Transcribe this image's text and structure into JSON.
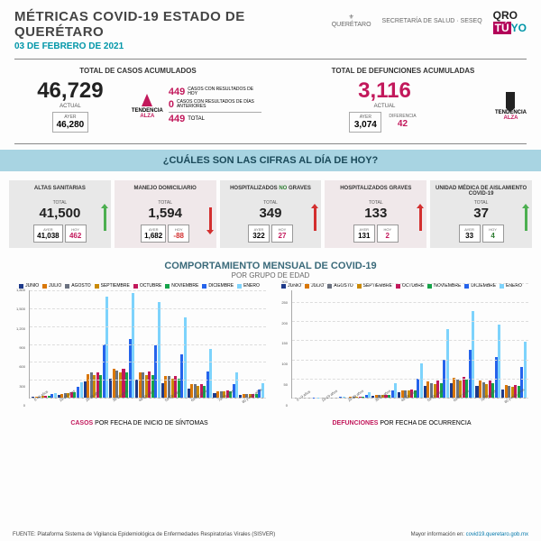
{
  "header": {
    "title": "MÉTRICAS COVID-19 ESTADO DE QUERÉTARO",
    "date": "03 DE FEBRERO DE 2021",
    "logo_sec": "SECRETARÍA DE SALUD · SESEQ",
    "logo_state": "QUERÉTARO"
  },
  "totals": {
    "cases": {
      "title": "TOTAL DE CASOS ACUMULADOS",
      "current": "46,729",
      "current_label": "ACTUAL",
      "yesterday": "46,280",
      "yesterday_label": "AYER",
      "today_results": "449",
      "today_results_label": "CASOS CON RESULTADOS DE HOY",
      "prev_results": "0",
      "prev_results_label": "CASOS CON RESULTADOS DE DÍAS ANTERIORES",
      "total_new": "449",
      "total_new_label": "TOTAL",
      "trend_label": "TENDENCIA",
      "trend_value": "ALZA"
    },
    "deaths": {
      "title": "TOTAL DE DEFUNCIONES ACUMULADAS",
      "current": "3,116",
      "current_label": "ACTUAL",
      "yesterday": "3,074",
      "yesterday_label": "AYER",
      "diff": "42",
      "diff_label": "DIFERENCIA",
      "trend_label": "TENDENCIA",
      "trend_value": "ALZA"
    }
  },
  "band": "¿CUÁLES SON LAS CIFRAS AL DÍA DE HOY?",
  "cards": [
    {
      "title": "ALTAS SANITARIAS",
      "total": "41,500",
      "yesterday": "41,038",
      "today": "462",
      "today_color": "#c2185b",
      "arrow": "green-up"
    },
    {
      "title": "MANEJO DOMICILIARIO",
      "total": "1,594",
      "yesterday": "1,682",
      "today": "-88",
      "today_color": "#d32f2f",
      "arrow": "red-down"
    },
    {
      "title_html": "HOSPITALIZADOS <span class='no-green'>NO</span> GRAVES",
      "title": "HOSPITALIZADOS NO GRAVES",
      "total": "349",
      "yesterday": "322",
      "today": "27",
      "today_color": "#c2185b",
      "arrow": "red-up"
    },
    {
      "title": "HOSPITALIZADOS GRAVES",
      "total": "133",
      "yesterday": "131",
      "today": "2",
      "today_color": "#c2185b",
      "arrow": "red-up"
    },
    {
      "title": "UNIDAD MÉDICA DE AISLAMIENTO COVID-19",
      "total": "37",
      "yesterday": "33",
      "today": "4",
      "today_color": "#2e7d32",
      "arrow": "green-up"
    }
  ],
  "card_labels": {
    "total": "TOTAL",
    "yesterday": "AYER",
    "today": "HOY"
  },
  "charts_header": {
    "title": "COMPORTAMIENTO MENSUAL DE COVID-19",
    "subtitle": "POR GRUPO DE EDAD"
  },
  "legend_months": [
    {
      "label": "JUNIO",
      "color": "#1e3a8a"
    },
    {
      "label": "JULIO",
      "color": "#d97706"
    },
    {
      "label": "AGOSTO",
      "color": "#6b7280"
    },
    {
      "label": "SEPTIEMBRE",
      "color": "#ca8a04"
    },
    {
      "label": "OCTUBRE",
      "color": "#c2185b"
    },
    {
      "label": "NOVIEMBRE",
      "color": "#16a34a"
    },
    {
      "label": "DICIEMBRE",
      "color": "#2563eb"
    },
    {
      "label": "ENERO",
      "color": "#7dd3fc"
    }
  ],
  "age_groups": [
    "0 - 9 años",
    "10-19 años",
    "20-29 años",
    "30-39 años",
    "40-49 años",
    "50-59 años",
    "60-69 años",
    "70-79 años",
    "80 y más años"
  ],
  "chart_cases": {
    "caption_accent": "CASOS",
    "caption_rest": " POR FECHA DE INICIO DE SÍNTOMAS",
    "ymax": 1800,
    "yticks": [
      0,
      300,
      600,
      900,
      1200,
      1500,
      1800
    ],
    "data": [
      [
        10,
        15,
        20,
        25,
        30,
        30,
        60,
        80
      ],
      [
        40,
        60,
        70,
        80,
        90,
        90,
        180,
        260
      ],
      [
        280,
        400,
        420,
        380,
        420,
        380,
        900,
        1700
      ],
      [
        320,
        480,
        460,
        420,
        480,
        420,
        980,
        1750
      ],
      [
        300,
        420,
        420,
        380,
        440,
        380,
        880,
        1600
      ],
      [
        240,
        360,
        360,
        320,
        360,
        320,
        720,
        1350
      ],
      [
        150,
        220,
        220,
        200,
        230,
        200,
        440,
        820
      ],
      [
        80,
        110,
        110,
        100,
        120,
        100,
        230,
        420
      ],
      [
        40,
        60,
        60,
        55,
        65,
        55,
        130,
        240
      ]
    ]
  },
  "chart_deaths": {
    "caption_accent": "DEFUNCIONES",
    "caption_rest": " POR FECHA DE OCURRENCIA",
    "ymax": 280,
    "yticks": [
      0,
      50,
      100,
      150,
      200,
      250,
      300
    ],
    "data": [
      [
        0,
        0,
        0,
        0,
        0,
        0,
        1,
        1
      ],
      [
        0,
        0,
        0,
        0,
        0,
        0,
        2,
        2
      ],
      [
        1,
        2,
        2,
        2,
        3,
        3,
        8,
        14
      ],
      [
        5,
        7,
        6,
        6,
        8,
        7,
        20,
        38
      ],
      [
        14,
        20,
        18,
        18,
        22,
        18,
        50,
        90
      ],
      [
        30,
        42,
        38,
        36,
        44,
        38,
        100,
        180
      ],
      [
        38,
        52,
        48,
        44,
        54,
        46,
        125,
        225
      ],
      [
        30,
        44,
        40,
        36,
        44,
        38,
        105,
        190
      ],
      [
        22,
        32,
        30,
        28,
        34,
        30,
        80,
        145
      ]
    ]
  },
  "footer": {
    "source": "FUENTE: Plataforma Sistema  de Vigilancia Epidemiológica de Enfermedades Respiratorias Virales (SISVER)",
    "more": "Mayor información en:",
    "link": "covid19.queretaro.gob.mx"
  }
}
